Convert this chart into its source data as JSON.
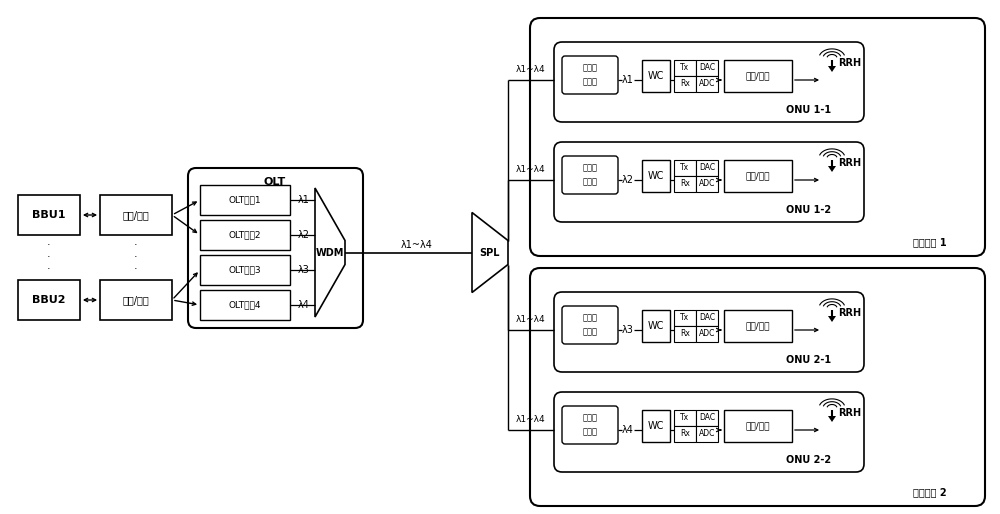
{
  "bg_color": "#ffffff",
  "fig_width": 10.0,
  "fig_height": 5.14,
  "bbu1_label": "BBU1",
  "bbu2_label": "BBU2",
  "juhe_label": "聚合/折分",
  "olt_label": "OLT",
  "wdm_label": "WDM",
  "spl_label": "SPL",
  "port_labels": [
    "OLT端口1",
    "OLT端口2",
    "OLT端口3",
    "OLT端口4"
  ],
  "lambda_labels": [
    "λ1",
    "λ2",
    "λ3",
    "λ4"
  ],
  "lambda_range": "λ1~λ4",
  "wc_label": "WC",
  "tx_label": "Tx",
  "rx_label": "Rx",
  "dac_label": "DAC",
  "adc_label": "ADC",
  "rrh_label": "RRH",
  "bose_label1": "波长选",
  "bose_label2": "择装置",
  "onu_labels": [
    "ONU 1-1",
    "ONU 1-2",
    "ONU 2-1",
    "ONU 2-2"
  ],
  "cell_labels": [
    "蜂窝小区 1",
    "蜂窝小区 2"
  ]
}
